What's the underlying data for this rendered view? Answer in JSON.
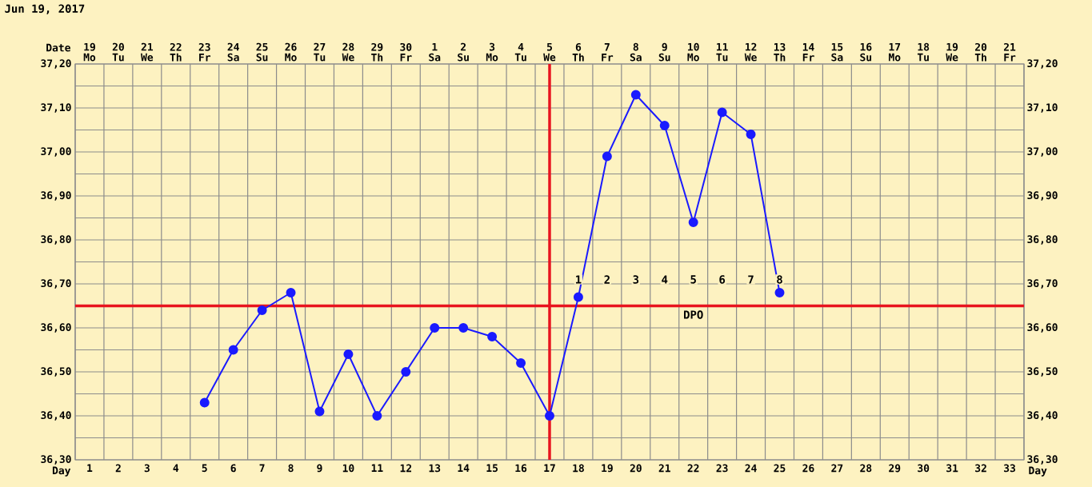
{
  "chart_data": {
    "type": "line",
    "title": "Jun 19, 2017",
    "xlabel": "Day",
    "x2label": "Date",
    "x": [
      5,
      6,
      7,
      8,
      9,
      10,
      11,
      12,
      13,
      14,
      15,
      16,
      17,
      18,
      19,
      20,
      21,
      22,
      23,
      24,
      25
    ],
    "series": [
      {
        "color": "#1a1aff",
        "values": [
          36.43,
          36.55,
          36.64,
          36.68,
          36.41,
          36.54,
          36.4,
          36.5,
          36.6,
          36.6,
          36.58,
          36.52,
          36.4,
          36.67,
          36.99,
          37.13,
          37.06,
          36.84,
          37.09,
          37.04,
          36.68
        ]
      }
    ],
    "xlim": [
      0.5,
      33.5
    ],
    "x2lim": [
      "2017-06-18T12:00",
      "2017-07-21T12:00"
    ],
    "xticks": [
      1,
      2,
      3,
      4,
      5,
      6,
      7,
      8,
      9,
      10,
      11,
      12,
      13,
      14,
      15,
      16,
      17,
      18,
      19,
      20,
      21,
      22,
      23,
      24,
      25,
      26,
      27,
      28,
      29,
      30,
      31,
      32,
      33
    ],
    "x2ticks": [
      {
        "value": "2017-06-19",
        "label": "19 Mo"
      },
      {
        "value": "2017-06-20",
        "label": "20 Tu"
      },
      {
        "value": "2017-06-21",
        "label": "21 We"
      },
      {
        "value": "2017-06-22",
        "label": "22 Th"
      },
      {
        "value": "2017-06-23",
        "label": "23 Fr"
      },
      {
        "value": "2017-06-24",
        "label": "24 Sa"
      },
      {
        "value": "2017-06-25",
        "label": "25 Su"
      },
      {
        "value": "2017-06-26",
        "label": "26 Mo"
      },
      {
        "value": "2017-06-27",
        "label": "27 Tu"
      },
      {
        "value": "2017-06-28",
        "label": "28 We"
      },
      {
        "value": "2017-06-29",
        "label": "29 Th"
      },
      {
        "value": "2017-06-30",
        "label": "30 Fr"
      },
      {
        "value": "2017-07-01",
        "label": "1 Sa"
      },
      {
        "value": "2017-07-02",
        "label": "2 Su"
      },
      {
        "value": "2017-07-03",
        "label": "3 Mo"
      },
      {
        "value": "2017-07-04",
        "label": "4 Tu"
      },
      {
        "value": "2017-07-05",
        "label": "5 We"
      },
      {
        "value": "2017-07-06",
        "label": "6 Th"
      },
      {
        "value": "2017-07-07",
        "label": "7 Fr"
      },
      {
        "value": "2017-07-08",
        "label": "8 Sa"
      },
      {
        "value": "2017-07-09",
        "label": "9 Su"
      },
      {
        "value": "2017-07-10",
        "label": "10 Mo"
      },
      {
        "value": "2017-07-11",
        "label": "11 Tu"
      },
      {
        "value": "2017-07-12",
        "label": "12 We"
      },
      {
        "value": "2017-07-13",
        "label": "13 Th"
      },
      {
        "value": "2017-07-14",
        "label": "14 Fr"
      },
      {
        "value": "2017-07-15",
        "label": "15 Sa"
      },
      {
        "value": "2017-07-16",
        "label": "16 Su"
      },
      {
        "value": "2017-07-17",
        "label": "17 Mo"
      },
      {
        "value": "2017-07-18",
        "label": "18 Tu"
      },
      {
        "value": "2017-07-19",
        "label": "19 We"
      },
      {
        "value": "2017-07-20",
        "label": "20 Th"
      },
      {
        "value": "2017-07-21",
        "label": "21 Fr"
      }
    ],
    "ylim": [
      36.3,
      37.2
    ],
    "y2lim": [
      36.3,
      37.2
    ],
    "yticks": [
      {
        "value": 36.3,
        "label": "36,30"
      },
      {
        "value": 36.4,
        "label": "36,40"
      },
      {
        "value": 36.5,
        "label": "36,50"
      },
      {
        "value": 36.6,
        "label": "36,60"
      },
      {
        "value": 36.7,
        "label": "36,70"
      },
      {
        "value": 36.8,
        "label": "36,80"
      },
      {
        "value": 36.9,
        "label": "36,90"
      },
      {
        "value": 37.0,
        "label": "37,00"
      },
      {
        "value": 37.1,
        "label": "37,10"
      },
      {
        "value": 37.2,
        "label": "37,20"
      }
    ],
    "y2ticks": [
      {
        "value": 36.3,
        "label": "36,30"
      },
      {
        "value": 36.4,
        "label": "36,40"
      },
      {
        "value": 36.5,
        "label": "36,50"
      },
      {
        "value": 36.6,
        "label": "36,60"
      },
      {
        "value": 36.7,
        "label": "36,70"
      },
      {
        "value": 36.8,
        "label": "36,80"
      },
      {
        "value": 36.9,
        "label": "36,90"
      },
      {
        "value": 37.0,
        "label": "37,00"
      },
      {
        "value": 37.1,
        "label": "37,10"
      },
      {
        "value": 37.2,
        "label": "37,20"
      }
    ],
    "ref_lines": [
      {
        "axis": "y",
        "value": 36.65,
        "color": "#e8141e"
      },
      {
        "axis": "x",
        "value": 17,
        "color": "#e8141e"
      }
    ],
    "annotations": [
      {
        "text": "1",
        "x": 18,
        "y": 36.71
      },
      {
        "text": "2",
        "x": 19,
        "y": 36.71
      },
      {
        "text": "3",
        "x": 20,
        "y": 36.71
      },
      {
        "text": "4",
        "x": 21,
        "y": 36.71
      },
      {
        "text": "5",
        "x": 22,
        "y": 36.71
      },
      {
        "text": "6",
        "x": 23,
        "y": 36.71
      },
      {
        "text": "7",
        "x": 24,
        "y": 36.71
      },
      {
        "text": "8",
        "x": 25,
        "y": 36.71
      },
      {
        "text": "DPO",
        "x": 22,
        "y": 36.63
      }
    ],
    "grid": true,
    "marker": "circle",
    "line_style": "solid"
  }
}
